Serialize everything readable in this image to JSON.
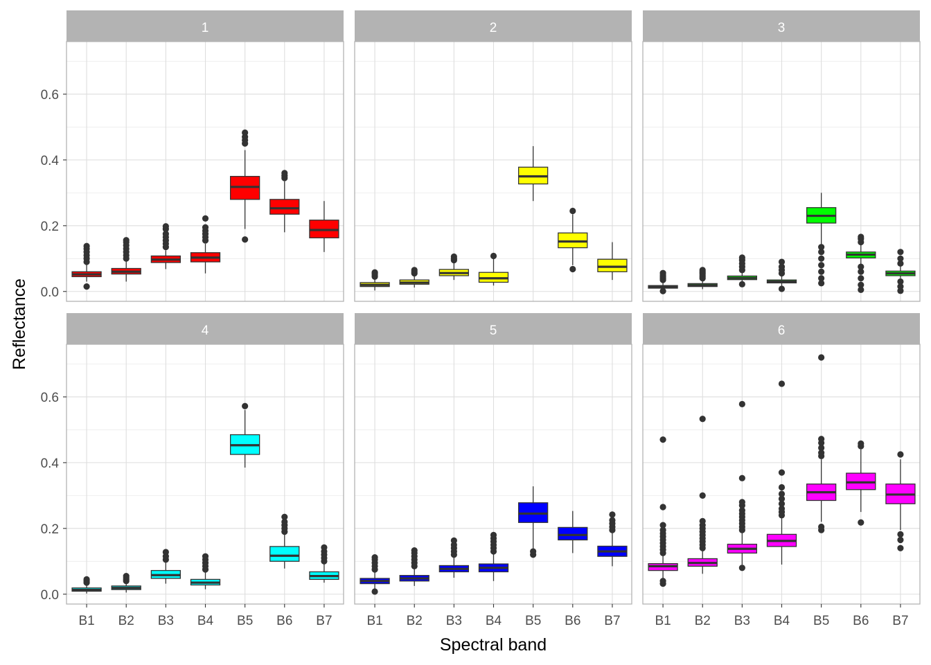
{
  "xlabel": "Spectral band",
  "ylabel": "Reflectance",
  "chart_data": {
    "type": "boxplot",
    "facet_layout": "2 rows x 3 columns",
    "categories": [
      "B1",
      "B2",
      "B3",
      "B4",
      "B5",
      "B6",
      "B7"
    ],
    "ylim": [
      -0.03,
      0.76
    ],
    "yticks": [
      0.0,
      0.2,
      0.4,
      0.6
    ],
    "ytick_labels": [
      "0.0",
      "0.2",
      "0.4",
      "0.6"
    ],
    "grid": true,
    "legend": "none",
    "panels": [
      {
        "label": "1",
        "fill": "#ff0000",
        "boxes": [
          {
            "band": "B1",
            "q1": 0.045,
            "median": 0.052,
            "q3": 0.06,
            "whisker_low": 0.03,
            "whisker_high": 0.083,
            "outliers": [
              0.015,
              0.09,
              0.1,
              0.11,
              0.12,
              0.13,
              0.138
            ]
          },
          {
            "band": "B2",
            "q1": 0.053,
            "median": 0.06,
            "q3": 0.07,
            "whisker_low": 0.03,
            "whisker_high": 0.092,
            "outliers": [
              0.1,
              0.11,
              0.12,
              0.13,
              0.14,
              0.15,
              0.156
            ]
          },
          {
            "band": "B3",
            "q1": 0.088,
            "median": 0.097,
            "q3": 0.108,
            "whisker_low": 0.068,
            "whisker_high": 0.125,
            "outliers": [
              0.135,
              0.145,
              0.155,
              0.165,
              0.175,
              0.19,
              0.198
            ]
          },
          {
            "band": "B4",
            "q1": 0.09,
            "median": 0.103,
            "q3": 0.118,
            "whisker_low": 0.055,
            "whisker_high": 0.145,
            "outliers": [
              0.155,
              0.165,
              0.175,
              0.185,
              0.195,
              0.222
            ]
          },
          {
            "band": "B5",
            "q1": 0.28,
            "median": 0.318,
            "q3": 0.35,
            "whisker_low": 0.19,
            "whisker_high": 0.43,
            "outliers": [
              0.158,
              0.45,
              0.46,
              0.47,
              0.483
            ]
          },
          {
            "band": "B6",
            "q1": 0.235,
            "median": 0.253,
            "q3": 0.28,
            "whisker_low": 0.18,
            "whisker_high": 0.335,
            "outliers": [
              0.345,
              0.352,
              0.36
            ]
          },
          {
            "band": "B7",
            "q1": 0.163,
            "median": 0.187,
            "q3": 0.217,
            "whisker_low": 0.12,
            "whisker_high": 0.275,
            "outliers": []
          }
        ]
      },
      {
        "label": "2",
        "fill": "#ffff00",
        "boxes": [
          {
            "band": "B1",
            "q1": 0.015,
            "median": 0.02,
            "q3": 0.027,
            "whisker_low": 0.003,
            "whisker_high": 0.04,
            "outliers": [
              0.045,
              0.05,
              0.055,
              0.058
            ]
          },
          {
            "band": "B2",
            "q1": 0.022,
            "median": 0.027,
            "q3": 0.035,
            "whisker_low": 0.012,
            "whisker_high": 0.05,
            "outliers": [
              0.055,
              0.06,
              0.065
            ]
          },
          {
            "band": "B3",
            "q1": 0.048,
            "median": 0.056,
            "q3": 0.067,
            "whisker_low": 0.035,
            "whisker_high": 0.09,
            "outliers": [
              0.095,
              0.1,
              0.106
            ]
          },
          {
            "band": "B4",
            "q1": 0.028,
            "median": 0.04,
            "q3": 0.058,
            "whisker_low": 0.018,
            "whisker_high": 0.1,
            "outliers": [
              0.108
            ]
          },
          {
            "band": "B5",
            "q1": 0.327,
            "median": 0.35,
            "q3": 0.378,
            "whisker_low": 0.275,
            "whisker_high": 0.442,
            "outliers": []
          },
          {
            "band": "B6",
            "q1": 0.133,
            "median": 0.152,
            "q3": 0.178,
            "whisker_low": 0.08,
            "whisker_high": 0.235,
            "outliers": [
              0.068,
              0.245
            ]
          },
          {
            "band": "B7",
            "q1": 0.06,
            "median": 0.075,
            "q3": 0.098,
            "whisker_low": 0.035,
            "whisker_high": 0.15,
            "outliers": []
          }
        ]
      },
      {
        "label": "3",
        "fill": "#00ff00",
        "boxes": [
          {
            "band": "B1",
            "q1": 0.01,
            "median": 0.014,
            "q3": 0.018,
            "whisker_low": 0.002,
            "whisker_high": 0.03,
            "outliers": [
              0.001,
              0.035,
              0.04,
              0.045,
              0.05,
              0.056
            ]
          },
          {
            "band": "B2",
            "q1": 0.015,
            "median": 0.019,
            "q3": 0.024,
            "whisker_low": 0.007,
            "whisker_high": 0.035,
            "outliers": [
              0.04,
              0.045,
              0.05,
              0.055,
              0.06,
              0.065
            ]
          },
          {
            "band": "B3",
            "q1": 0.036,
            "median": 0.041,
            "q3": 0.047,
            "whisker_low": 0.028,
            "whisker_high": 0.06,
            "outliers": [
              0.022,
              0.065,
              0.075,
              0.085,
              0.095,
              0.103
            ]
          },
          {
            "band": "B4",
            "q1": 0.026,
            "median": 0.03,
            "q3": 0.035,
            "whisker_low": 0.015,
            "whisker_high": 0.05,
            "outliers": [
              0.008,
              0.055,
              0.065,
              0.075,
              0.09
            ]
          },
          {
            "band": "B5",
            "q1": 0.208,
            "median": 0.23,
            "q3": 0.255,
            "whisker_low": 0.14,
            "whisker_high": 0.3,
            "outliers": [
              0.025,
              0.04,
              0.06,
              0.08,
              0.1,
              0.12,
              0.135
            ]
          },
          {
            "band": "B6",
            "q1": 0.102,
            "median": 0.112,
            "q3": 0.12,
            "whisker_low": 0.08,
            "whisker_high": 0.145,
            "outliers": [
              0.005,
              0.02,
              0.04,
              0.06,
              0.075,
              0.15,
              0.16,
              0.166
            ]
          },
          {
            "band": "B7",
            "q1": 0.048,
            "median": 0.055,
            "q3": 0.062,
            "whisker_low": 0.04,
            "whisker_high": 0.08,
            "outliers": [
              0.002,
              0.015,
              0.03,
              0.085,
              0.1,
              0.12
            ]
          }
        ]
      },
      {
        "label": "4",
        "fill": "#00ffff",
        "boxes": [
          {
            "band": "B1",
            "q1": 0.009,
            "median": 0.013,
            "q3": 0.019,
            "whisker_low": 0.002,
            "whisker_high": 0.03,
            "outliers": [
              0.035,
              0.04,
              0.045
            ]
          },
          {
            "band": "B2",
            "q1": 0.014,
            "median": 0.019,
            "q3": 0.025,
            "whisker_low": 0.005,
            "whisker_high": 0.035,
            "outliers": [
              0.04,
              0.045,
              0.05,
              0.055
            ]
          },
          {
            "band": "B3",
            "q1": 0.048,
            "median": 0.058,
            "q3": 0.072,
            "whisker_low": 0.032,
            "whisker_high": 0.1,
            "outliers": [
              0.105,
              0.115,
              0.128
            ]
          },
          {
            "band": "B4",
            "q1": 0.028,
            "median": 0.035,
            "q3": 0.045,
            "whisker_low": 0.015,
            "whisker_high": 0.07,
            "outliers": [
              0.075,
              0.085,
              0.095,
              0.105,
              0.115
            ]
          },
          {
            "band": "B5",
            "q1": 0.425,
            "median": 0.453,
            "q3": 0.485,
            "whisker_low": 0.385,
            "whisker_high": 0.56,
            "outliers": [
              0.572
            ]
          },
          {
            "band": "B6",
            "q1": 0.1,
            "median": 0.117,
            "q3": 0.145,
            "whisker_low": 0.078,
            "whisker_high": 0.185,
            "outliers": [
              0.19,
              0.2,
              0.21,
              0.22,
              0.235
            ]
          },
          {
            "band": "B7",
            "q1": 0.045,
            "median": 0.055,
            "q3": 0.068,
            "whisker_low": 0.035,
            "whisker_high": 0.095,
            "outliers": [
              0.1,
              0.11,
              0.12,
              0.13,
              0.142
            ]
          }
        ]
      },
      {
        "label": "5",
        "fill": "#0000ff",
        "boxes": [
          {
            "band": "B1",
            "q1": 0.032,
            "median": 0.04,
            "q3": 0.048,
            "whisker_low": 0.015,
            "whisker_high": 0.07,
            "outliers": [
              0.008,
              0.075,
              0.085,
              0.095,
              0.105,
              0.112
            ]
          },
          {
            "band": "B2",
            "q1": 0.04,
            "median": 0.048,
            "q3": 0.057,
            "whisker_low": 0.025,
            "whisker_high": 0.08,
            "outliers": [
              0.085,
              0.095,
              0.105,
              0.115,
              0.125,
              0.133
            ]
          },
          {
            "band": "B3",
            "q1": 0.068,
            "median": 0.077,
            "q3": 0.087,
            "whisker_low": 0.05,
            "whisker_high": 0.115,
            "outliers": [
              0.12,
              0.13,
              0.14,
              0.15,
              0.163
            ]
          },
          {
            "band": "B4",
            "q1": 0.068,
            "median": 0.08,
            "q3": 0.092,
            "whisker_low": 0.04,
            "whisker_high": 0.125,
            "outliers": [
              0.13,
              0.14,
              0.15,
              0.16,
              0.17,
              0.18
            ]
          },
          {
            "band": "B5",
            "q1": 0.218,
            "median": 0.245,
            "q3": 0.278,
            "whisker_low": 0.135,
            "whisker_high": 0.328,
            "outliers": [
              0.12,
              0.13
            ]
          },
          {
            "band": "B6",
            "q1": 0.165,
            "median": 0.18,
            "q3": 0.203,
            "whisker_low": 0.125,
            "whisker_high": 0.253,
            "outliers": []
          },
          {
            "band": "B7",
            "q1": 0.115,
            "median": 0.13,
            "q3": 0.146,
            "whisker_low": 0.085,
            "whisker_high": 0.19,
            "outliers": [
              0.195,
              0.205,
              0.215,
              0.225,
              0.242
            ]
          }
        ]
      },
      {
        "label": "6",
        "fill": "#ff00ff",
        "boxes": [
          {
            "band": "B1",
            "q1": 0.072,
            "median": 0.085,
            "q3": 0.093,
            "whisker_low": 0.045,
            "whisker_high": 0.12,
            "outliers": [
              0.032,
              0.04,
              0.125,
              0.135,
              0.145,
              0.155,
              0.165,
              0.175,
              0.185,
              0.195,
              0.21,
              0.265,
              0.47
            ]
          },
          {
            "band": "B2",
            "q1": 0.085,
            "median": 0.095,
            "q3": 0.108,
            "whisker_low": 0.062,
            "whisker_high": 0.135,
            "outliers": [
              0.14,
              0.15,
              0.16,
              0.17,
              0.18,
              0.19,
              0.2,
              0.21,
              0.222,
              0.3,
              0.533
            ]
          },
          {
            "band": "B3",
            "q1": 0.125,
            "median": 0.138,
            "q3": 0.152,
            "whisker_low": 0.09,
            "whisker_high": 0.19,
            "outliers": [
              0.08,
              0.195,
              0.205,
              0.215,
              0.225,
              0.235,
              0.245,
              0.255,
              0.27,
              0.28,
              0.353,
              0.578
            ]
          },
          {
            "band": "B4",
            "q1": 0.145,
            "median": 0.162,
            "q3": 0.182,
            "whisker_low": 0.09,
            "whisker_high": 0.235,
            "outliers": [
              0.24,
              0.25,
              0.26,
              0.275,
              0.29,
              0.305,
              0.325,
              0.37,
              0.64
            ]
          },
          {
            "band": "B5",
            "q1": 0.285,
            "median": 0.31,
            "q3": 0.335,
            "whisker_low": 0.22,
            "whisker_high": 0.41,
            "outliers": [
              0.195,
              0.205,
              0.42,
              0.43,
              0.445,
              0.46,
              0.472,
              0.72
            ]
          },
          {
            "band": "B6",
            "q1": 0.318,
            "median": 0.34,
            "q3": 0.368,
            "whisker_low": 0.25,
            "whisker_high": 0.44,
            "outliers": [
              0.218,
              0.45,
              0.458
            ]
          },
          {
            "band": "B7",
            "q1": 0.275,
            "median": 0.303,
            "q3": 0.335,
            "whisker_low": 0.195,
            "whisker_high": 0.41,
            "outliers": [
              0.14,
              0.165,
              0.182,
              0.425
            ]
          }
        ]
      }
    ]
  }
}
